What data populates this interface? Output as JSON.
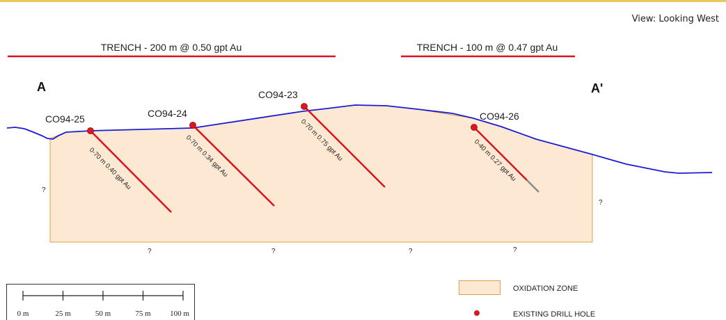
{
  "header": {
    "view_label": "View: Looking West"
  },
  "section": {
    "left_label": "A",
    "right_label": "A'"
  },
  "trenches": [
    {
      "label": "TRENCH - 200 m @ 0.50 gpt Au"
    },
    {
      "label": "TRENCH - 100 m @ 0.47 gpt Au"
    }
  ],
  "drill_holes": [
    {
      "id": "CO94-25",
      "intercept": "0-70 m 0.40 gpt Au"
    },
    {
      "id": "CO94-24",
      "intercept": "0-70 m 0.34 gpt Au"
    },
    {
      "id": "CO94-23",
      "intercept": "0-70 m 0.75 gpt Au"
    },
    {
      "id": "CO94-26",
      "intercept": "0-40 m 0.27 gpt Au"
    }
  ],
  "unknown_marker": "?",
  "scale_bar": {
    "ticks": [
      "0 m",
      "25 m",
      "50 m",
      "75 m",
      "100 m"
    ]
  },
  "legend": {
    "oxidation_zone": "OXIDATION ZONE",
    "drill_hole": "EXISTING DRILL HOLE"
  },
  "colors": {
    "surface": "#1a1ad6",
    "drill": "#d9121c",
    "oxidation_fill": "#fde9d3",
    "oxidation_border": "#e0a040",
    "trench": "#d9121c"
  }
}
